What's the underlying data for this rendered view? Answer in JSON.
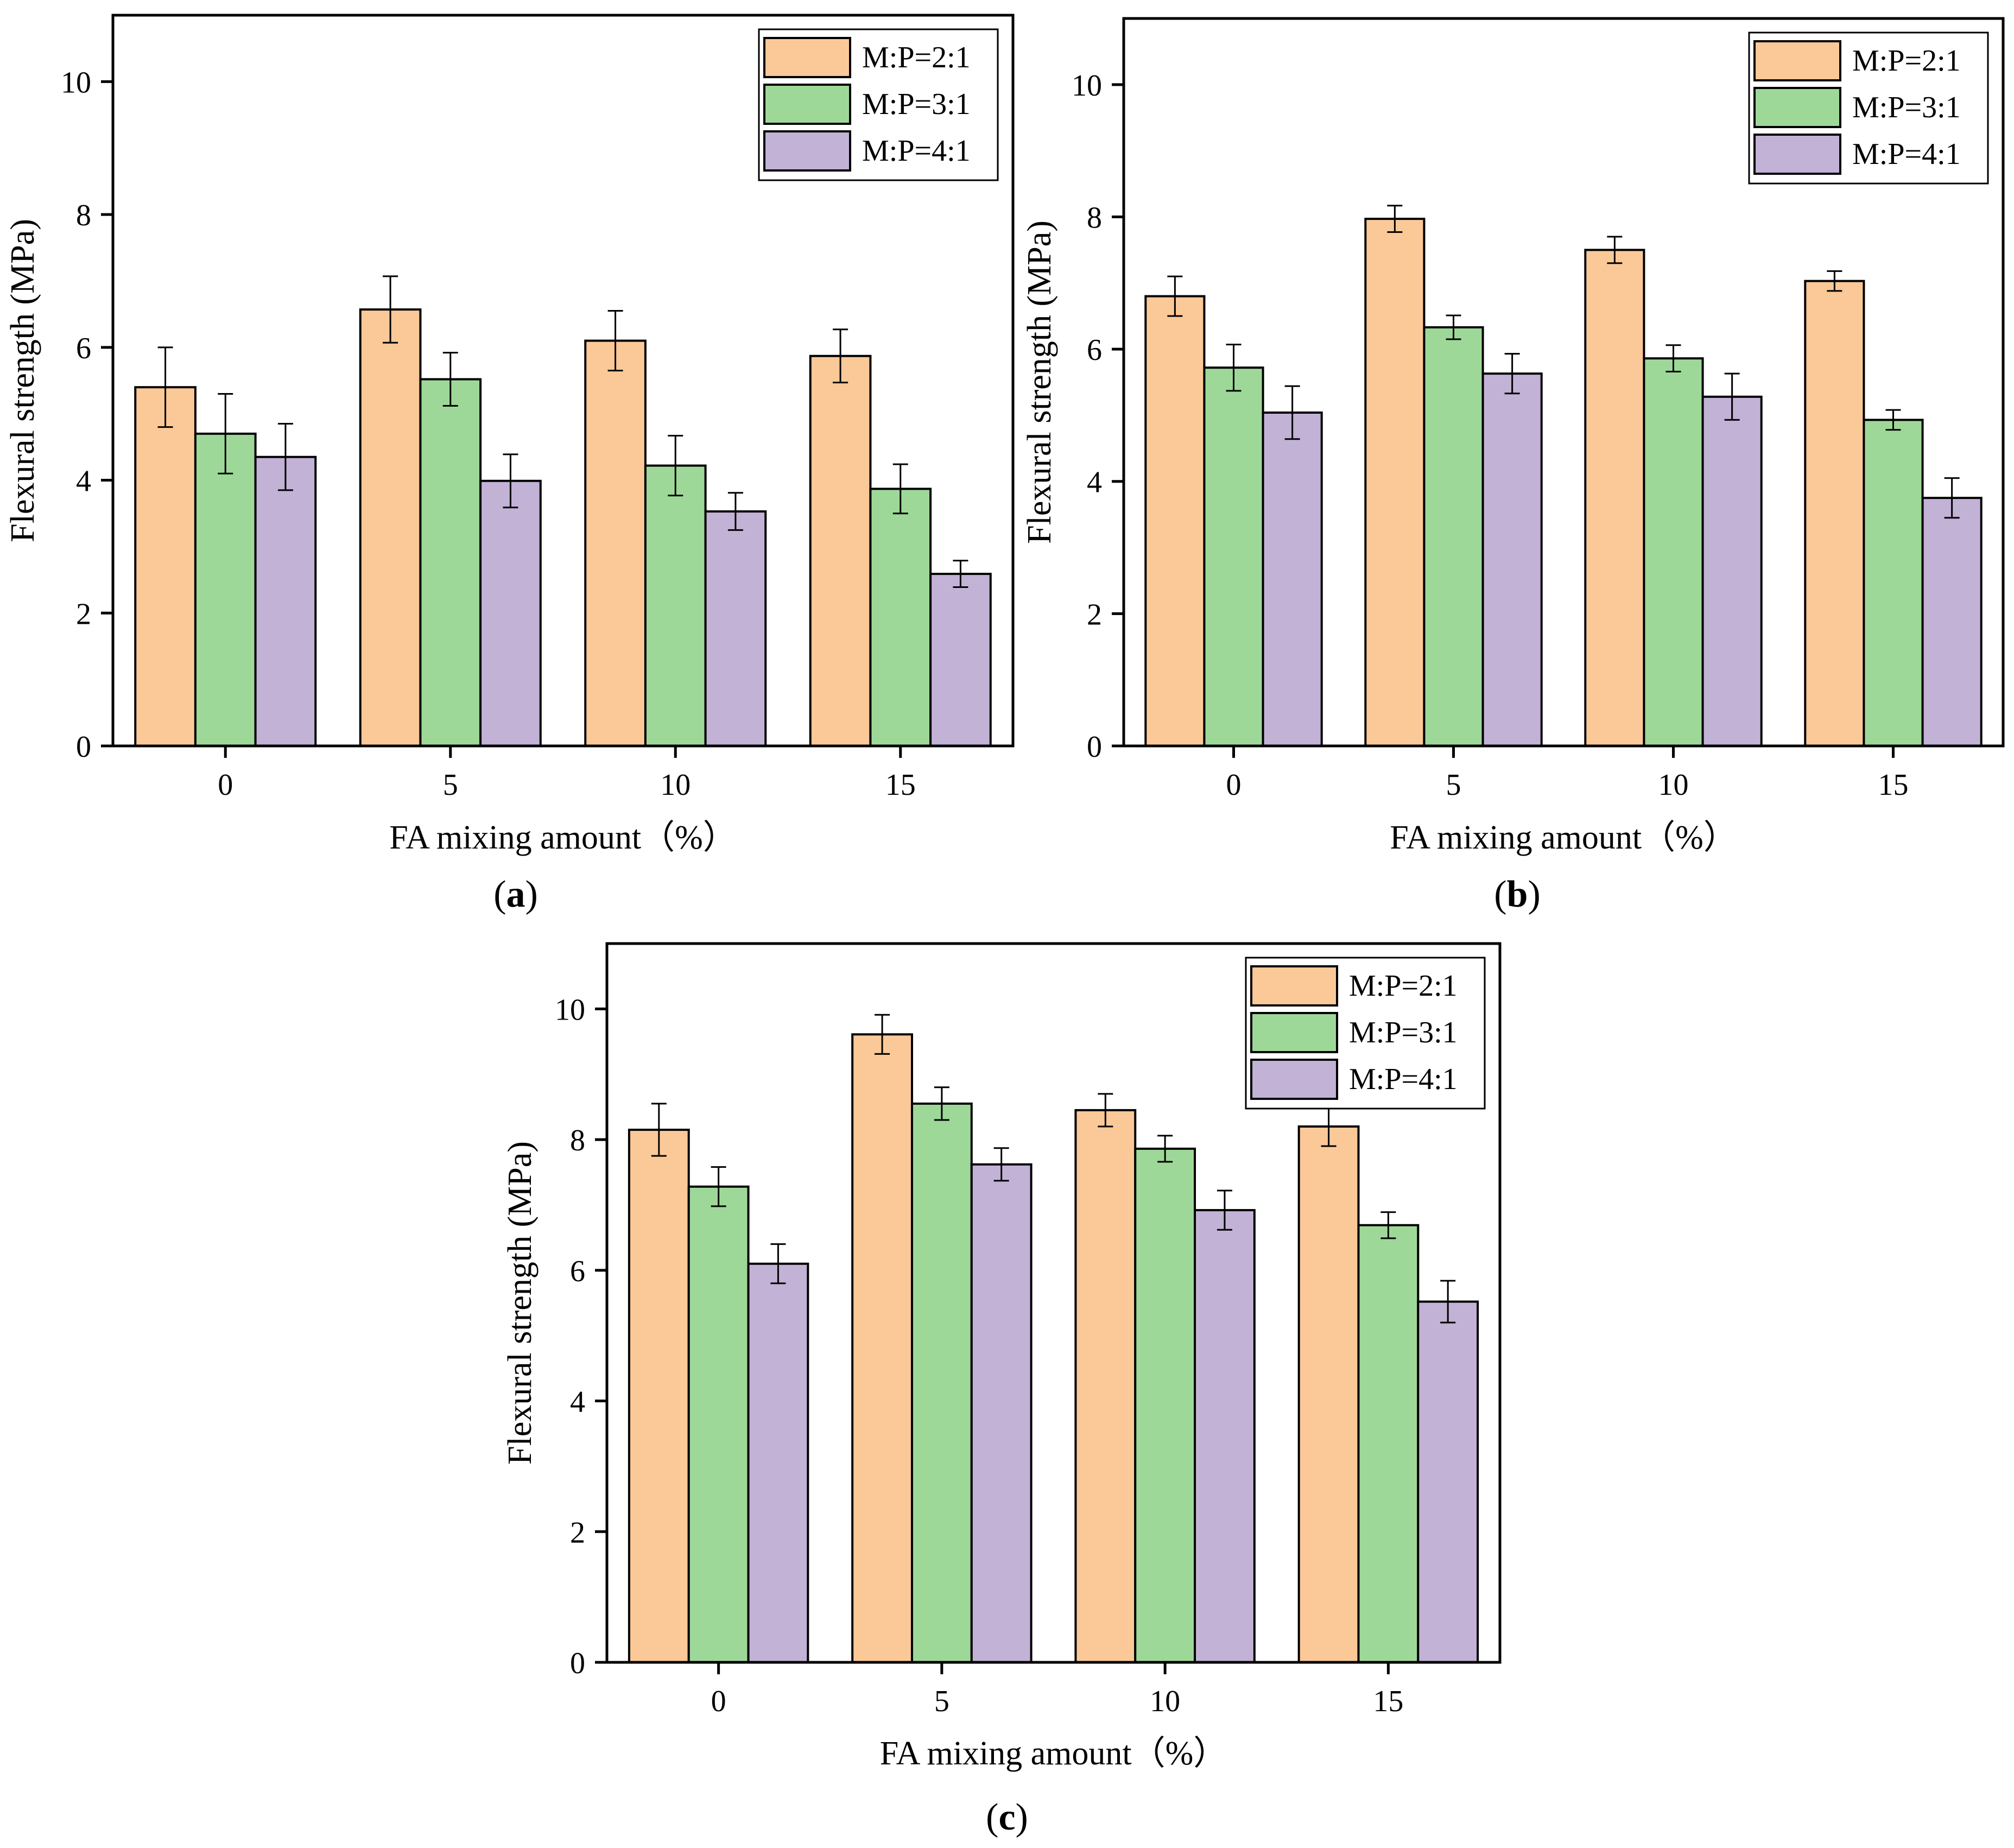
{
  "figure": {
    "panels": [
      {
        "label_open": "(",
        "label_letter": "a",
        "label_close": ")"
      },
      {
        "label_open": "(",
        "label_letter": "b",
        "label_close": ")"
      },
      {
        "label_open": "(",
        "label_letter": "c",
        "label_close": ")"
      }
    ]
  },
  "colors": {
    "M:P=2:1": "#fbc898",
    "M:P=3:1": "#9ed898",
    "M:P=4:1": "#c2b2d6",
    "axis": "#000000"
  },
  "chart_data": [
    {
      "type": "bar",
      "panel": "a",
      "title": "",
      "xlabel": "FA mixing amount（%）",
      "ylabel": "Flexural strength (MPa)",
      "categories": [
        "0",
        "5",
        "10",
        "15"
      ],
      "ylim": [
        0,
        11
      ],
      "yticks": [
        0,
        2,
        4,
        6,
        8,
        10
      ],
      "grid": false,
      "legend_position": "top-right",
      "series": [
        {
          "name": "M:P=2:1",
          "values": [
            5.4,
            6.57,
            6.1,
            5.87
          ],
          "errors": [
            0.6,
            0.5,
            0.45,
            0.4
          ]
        },
        {
          "name": "M:P=3:1",
          "values": [
            4.7,
            5.52,
            4.22,
            3.87
          ],
          "errors": [
            0.6,
            0.4,
            0.45,
            0.37
          ]
        },
        {
          "name": "M:P=4:1",
          "values": [
            4.35,
            3.99,
            3.53,
            2.59
          ],
          "errors": [
            0.5,
            0.4,
            0.28,
            0.2
          ]
        }
      ]
    },
    {
      "type": "bar",
      "panel": "b",
      "title": "",
      "xlabel": "FA mixing amount（%）",
      "ylabel": "Flexural strength (MPa)",
      "categories": [
        "0",
        "5",
        "10",
        "15"
      ],
      "ylim": [
        0,
        11
      ],
      "yticks": [
        0,
        2,
        4,
        6,
        8,
        10
      ],
      "grid": false,
      "legend_position": "top-right",
      "series": [
        {
          "name": "M:P=2:1",
          "values": [
            6.8,
            7.97,
            7.5,
            7.03
          ],
          "errors": [
            0.3,
            0.2,
            0.2,
            0.15
          ]
        },
        {
          "name": "M:P=3:1",
          "values": [
            5.72,
            6.33,
            5.86,
            4.93
          ],
          "errors": [
            0.35,
            0.18,
            0.2,
            0.15
          ]
        },
        {
          "name": "M:P=4:1",
          "values": [
            5.04,
            5.63,
            5.28,
            3.75
          ],
          "errors": [
            0.4,
            0.3,
            0.35,
            0.3
          ]
        }
      ]
    },
    {
      "type": "bar",
      "panel": "c",
      "title": "",
      "xlabel": "FA mixing amount（%）",
      "ylabel": "Flexural strength (MPa)",
      "categories": [
        "0",
        "5",
        "10",
        "15"
      ],
      "ylim": [
        0,
        11
      ],
      "yticks": [
        0,
        2,
        4,
        6,
        8,
        10
      ],
      "grid": false,
      "legend_position": "top-right",
      "series": [
        {
          "name": "M:P=2:1",
          "values": [
            8.15,
            9.61,
            8.45,
            8.2
          ],
          "errors": [
            0.4,
            0.3,
            0.25,
            0.3
          ]
        },
        {
          "name": "M:P=3:1",
          "values": [
            7.28,
            8.55,
            7.86,
            6.69
          ],
          "errors": [
            0.3,
            0.25,
            0.2,
            0.2
          ]
        },
        {
          "name": "M:P=4:1",
          "values": [
            6.1,
            7.62,
            6.92,
            5.52
          ],
          "errors": [
            0.3,
            0.25,
            0.3,
            0.32
          ]
        }
      ]
    }
  ]
}
